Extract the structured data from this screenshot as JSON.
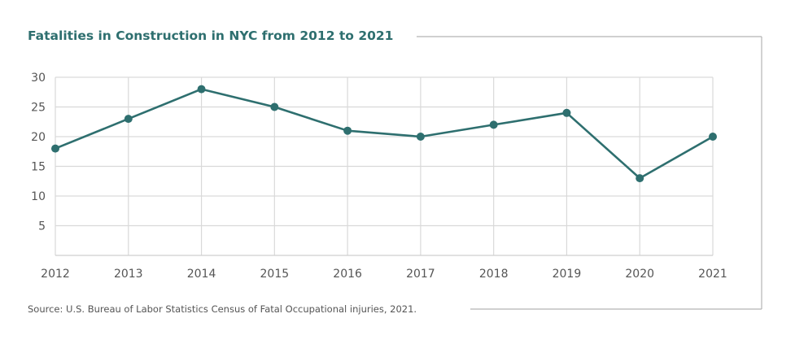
{
  "chart_data": {
    "type": "line",
    "title": "Fatalities in Construction in NYC from 2012 to 2021",
    "source": "Source: U.S. Bureau of Labor Statistics Census of Fatal Occupational injuries, 2021.",
    "x": [
      "2012",
      "2013",
      "2014",
      "2015",
      "2016",
      "2017",
      "2018",
      "2019",
      "2020",
      "2021"
    ],
    "series": [
      {
        "values": [
          18,
          23,
          28,
          25,
          21,
          20,
          22,
          24,
          13,
          20
        ]
      }
    ],
    "yticks": [
      5,
      10,
      15,
      20,
      25,
      30
    ],
    "ylim": [
      0,
      30
    ],
    "xlabel": "",
    "ylabel": "",
    "grid": true,
    "colors": {
      "line": "#2e6f6f",
      "grid": "#d9d9d9",
      "frame": "#b3b3b3",
      "title": "#2e6f6f",
      "text": "#555555"
    }
  }
}
